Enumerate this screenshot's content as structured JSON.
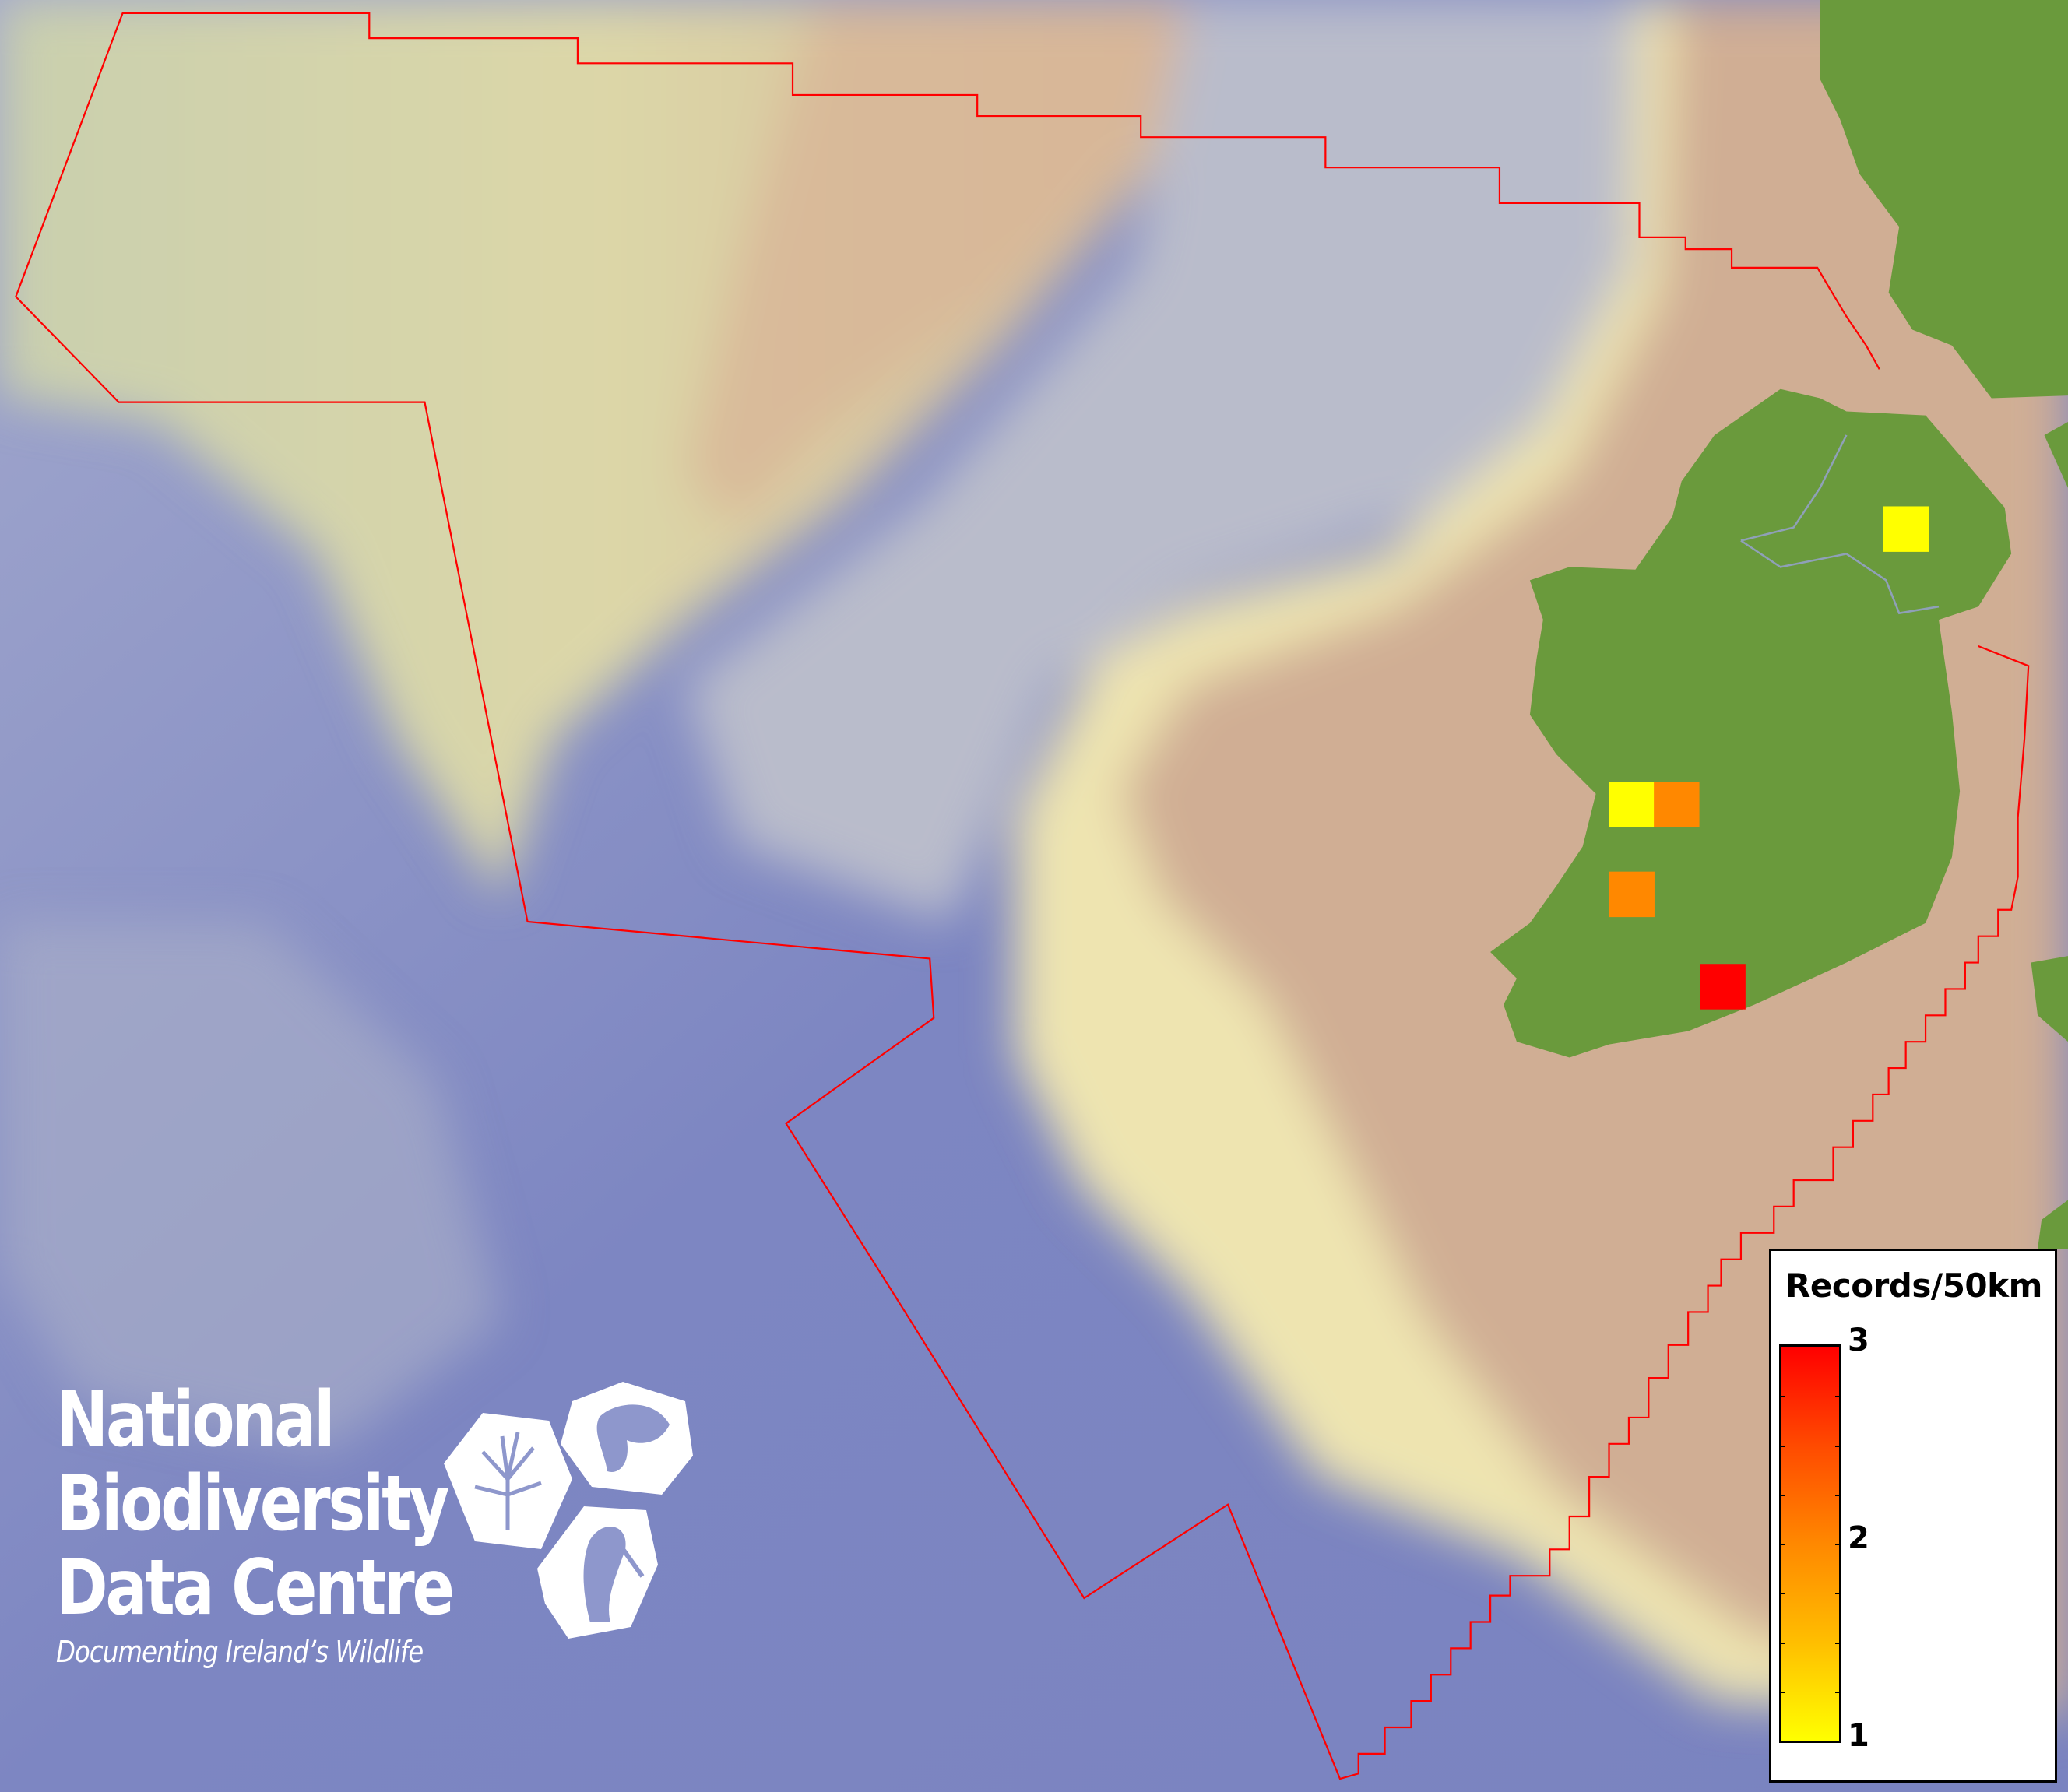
{
  "legend": {
    "title": "Records/50km",
    "max_label": "3",
    "mid_label": "2",
    "min_label": "1",
    "color_low": "#ffff00",
    "color_mid": "#ff8800",
    "color_high": "#ff0000"
  },
  "logo": {
    "line1": "National",
    "line2": "Biodiversity",
    "line3": "Data Centre",
    "tagline": "Documenting Ireland’s Wildlife",
    "icons": [
      "plant-icon",
      "butterfly-icon",
      "seahorse-icon"
    ]
  },
  "colors": {
    "boundary": "#ff0000",
    "land": "#6a9a3c",
    "shelf": "#c9a88c",
    "deep_ocean": "#7f88c4"
  },
  "chart_data": {
    "type": "heatmap",
    "title": "Records/50km",
    "color_scale": {
      "min": 1,
      "max": 3,
      "colors": [
        "#ffff00",
        "#ff8800",
        "#ff0000"
      ]
    },
    "cells": [
      {
        "region": "north",
        "value": 1
      },
      {
        "region": "west-1",
        "value": 1
      },
      {
        "region": "west-2",
        "value": 2
      },
      {
        "region": "southwest",
        "value": 2
      },
      {
        "region": "south",
        "value": 3
      }
    ]
  }
}
